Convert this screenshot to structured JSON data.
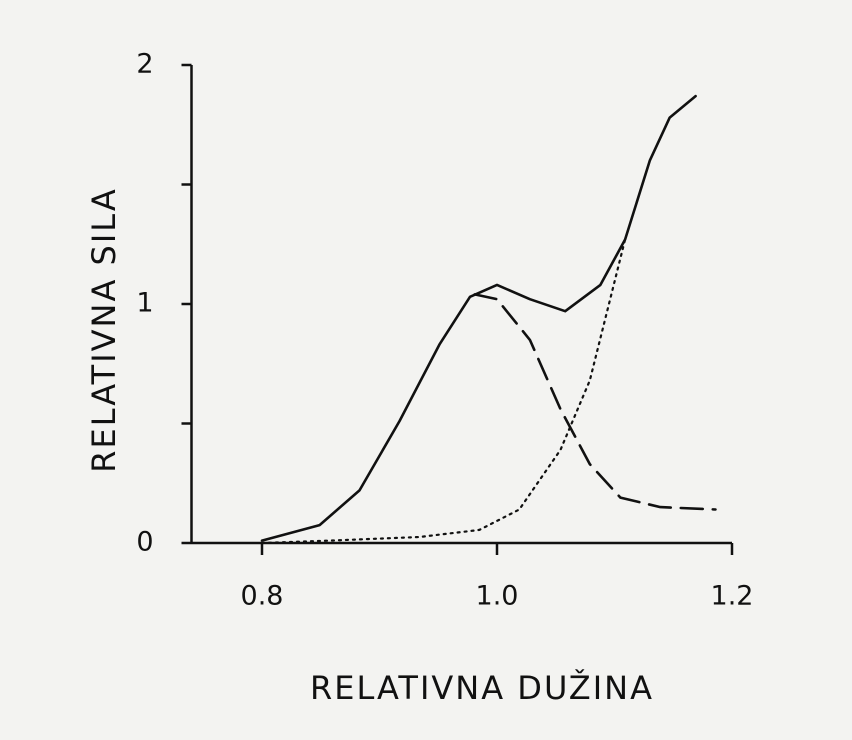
{
  "chart_data": {
    "type": "line",
    "x_label": "RELATIVNA DUŽINA",
    "y_label": "RELATIVNA SILA",
    "xlim": [
      0.74,
      1.2
    ],
    "ylim": [
      0,
      2
    ],
    "xticks": [
      0.8,
      {
        "value": 1,
        "label": "1.0"
      },
      1.2
    ],
    "yticks": [
      0,
      1,
      2
    ],
    "minor_yticks": [
      0.5,
      1.5
    ],
    "series": [
      {
        "color": "#111111",
        "dash": "solid",
        "x": [
          0.8,
          0.849,
          0.883,
          0.917,
          0.951,
          0.977,
          1.0,
          1.028,
          1.058,
          1.088,
          1.109,
          1.13,
          1.147,
          1.169
        ],
        "values": [
          0.01,
          0.075,
          0.22,
          0.51,
          0.83,
          1.03,
          1.08,
          1.02,
          0.97,
          1.08,
          1.27,
          1.6,
          1.78,
          1.87
        ]
      },
      {
        "color": "#111111",
        "dash": "dashed",
        "x": [
          0.981,
          1.0,
          1.028,
          1.054,
          1.079,
          1.105,
          1.139,
          1.186
        ],
        "values": [
          1.04,
          1.02,
          0.85,
          0.56,
          0.33,
          0.19,
          0.15,
          0.14
        ]
      },
      {
        "color": "#111111",
        "dash": "dotted",
        "x": [
          0.8,
          0.858,
          0.934,
          0.985,
          1.019,
          1.054,
          1.079,
          1.109
        ],
        "values": [
          0.0,
          0.01,
          0.025,
          0.055,
          0.14,
          0.39,
          0.68,
          1.27
        ]
      }
    ]
  }
}
